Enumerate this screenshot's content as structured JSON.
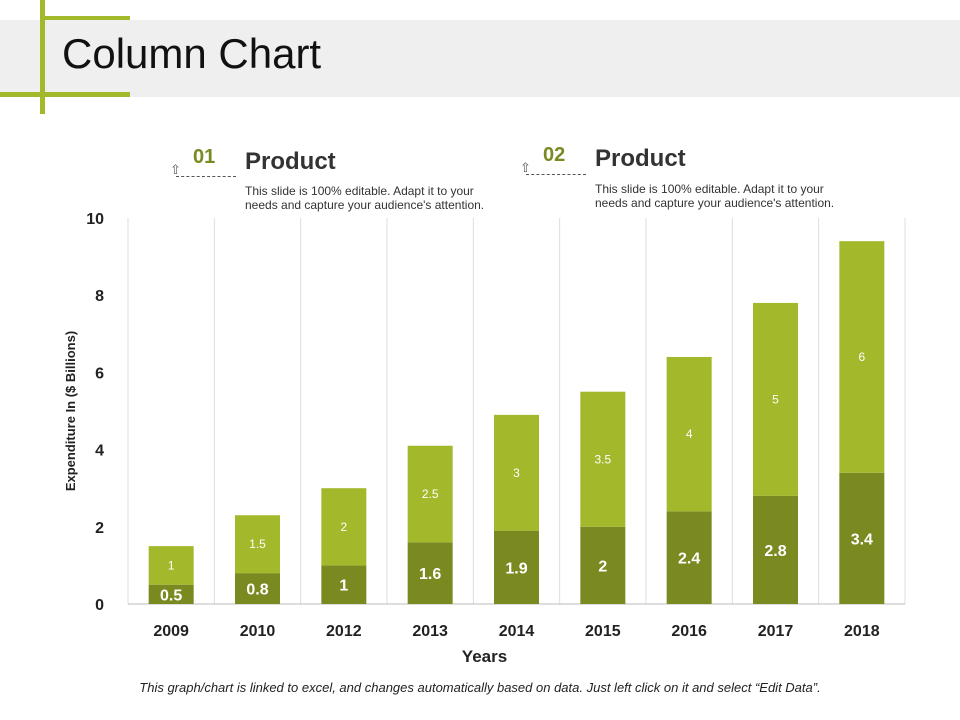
{
  "title": "Column Chart",
  "products": [
    {
      "number": "01",
      "title": "Product",
      "desc": "This slide is 100% editable. Adapt it to your needs and capture your audience's attention."
    },
    {
      "number": "02",
      "title": "Product",
      "desc": "This slide is 100% editable. Adapt it to your needs and capture your audience's attention."
    }
  ],
  "footer": "This graph/chart is linked to excel, and changes automatically based on data. Just left click on it and select “Edit Data”.",
  "chart_data": {
    "type": "bar",
    "stacked": true,
    "categories": [
      "2009",
      "2010",
      "2012",
      "2013",
      "2014",
      "2015",
      "2016",
      "2017",
      "2018"
    ],
    "series": [
      {
        "values": [
          0.5,
          0.8,
          1,
          1.6,
          1.9,
          2,
          2.4,
          2.8,
          3.4
        ],
        "color": "#7a8a20"
      },
      {
        "values": [
          1,
          1.5,
          2,
          2.5,
          3,
          3.5,
          4,
          5,
          6
        ],
        "color": "#a4b82c"
      }
    ],
    "xlabel": "Years",
    "ylabel": "Expenditure In ($ Billions)",
    "ylim": [
      0,
      10
    ],
    "yticks": [
      0,
      2,
      4,
      6,
      8,
      10
    ],
    "grid": "vertical"
  }
}
